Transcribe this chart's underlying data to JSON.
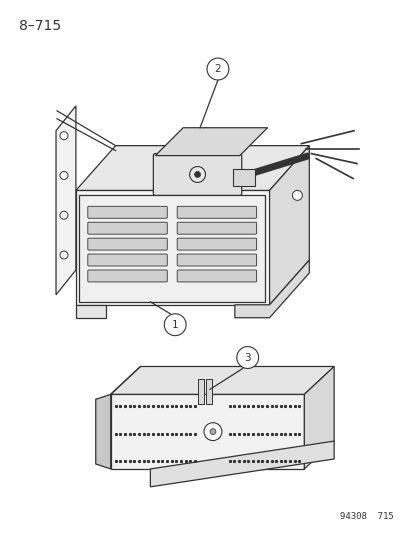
{
  "title": "8–715",
  "footer": "94308  715",
  "bg_color": "#ffffff",
  "line_color": "#333333",
  "title_fontsize": 10,
  "footer_fontsize": 6.5,
  "callout_r": 0.022
}
